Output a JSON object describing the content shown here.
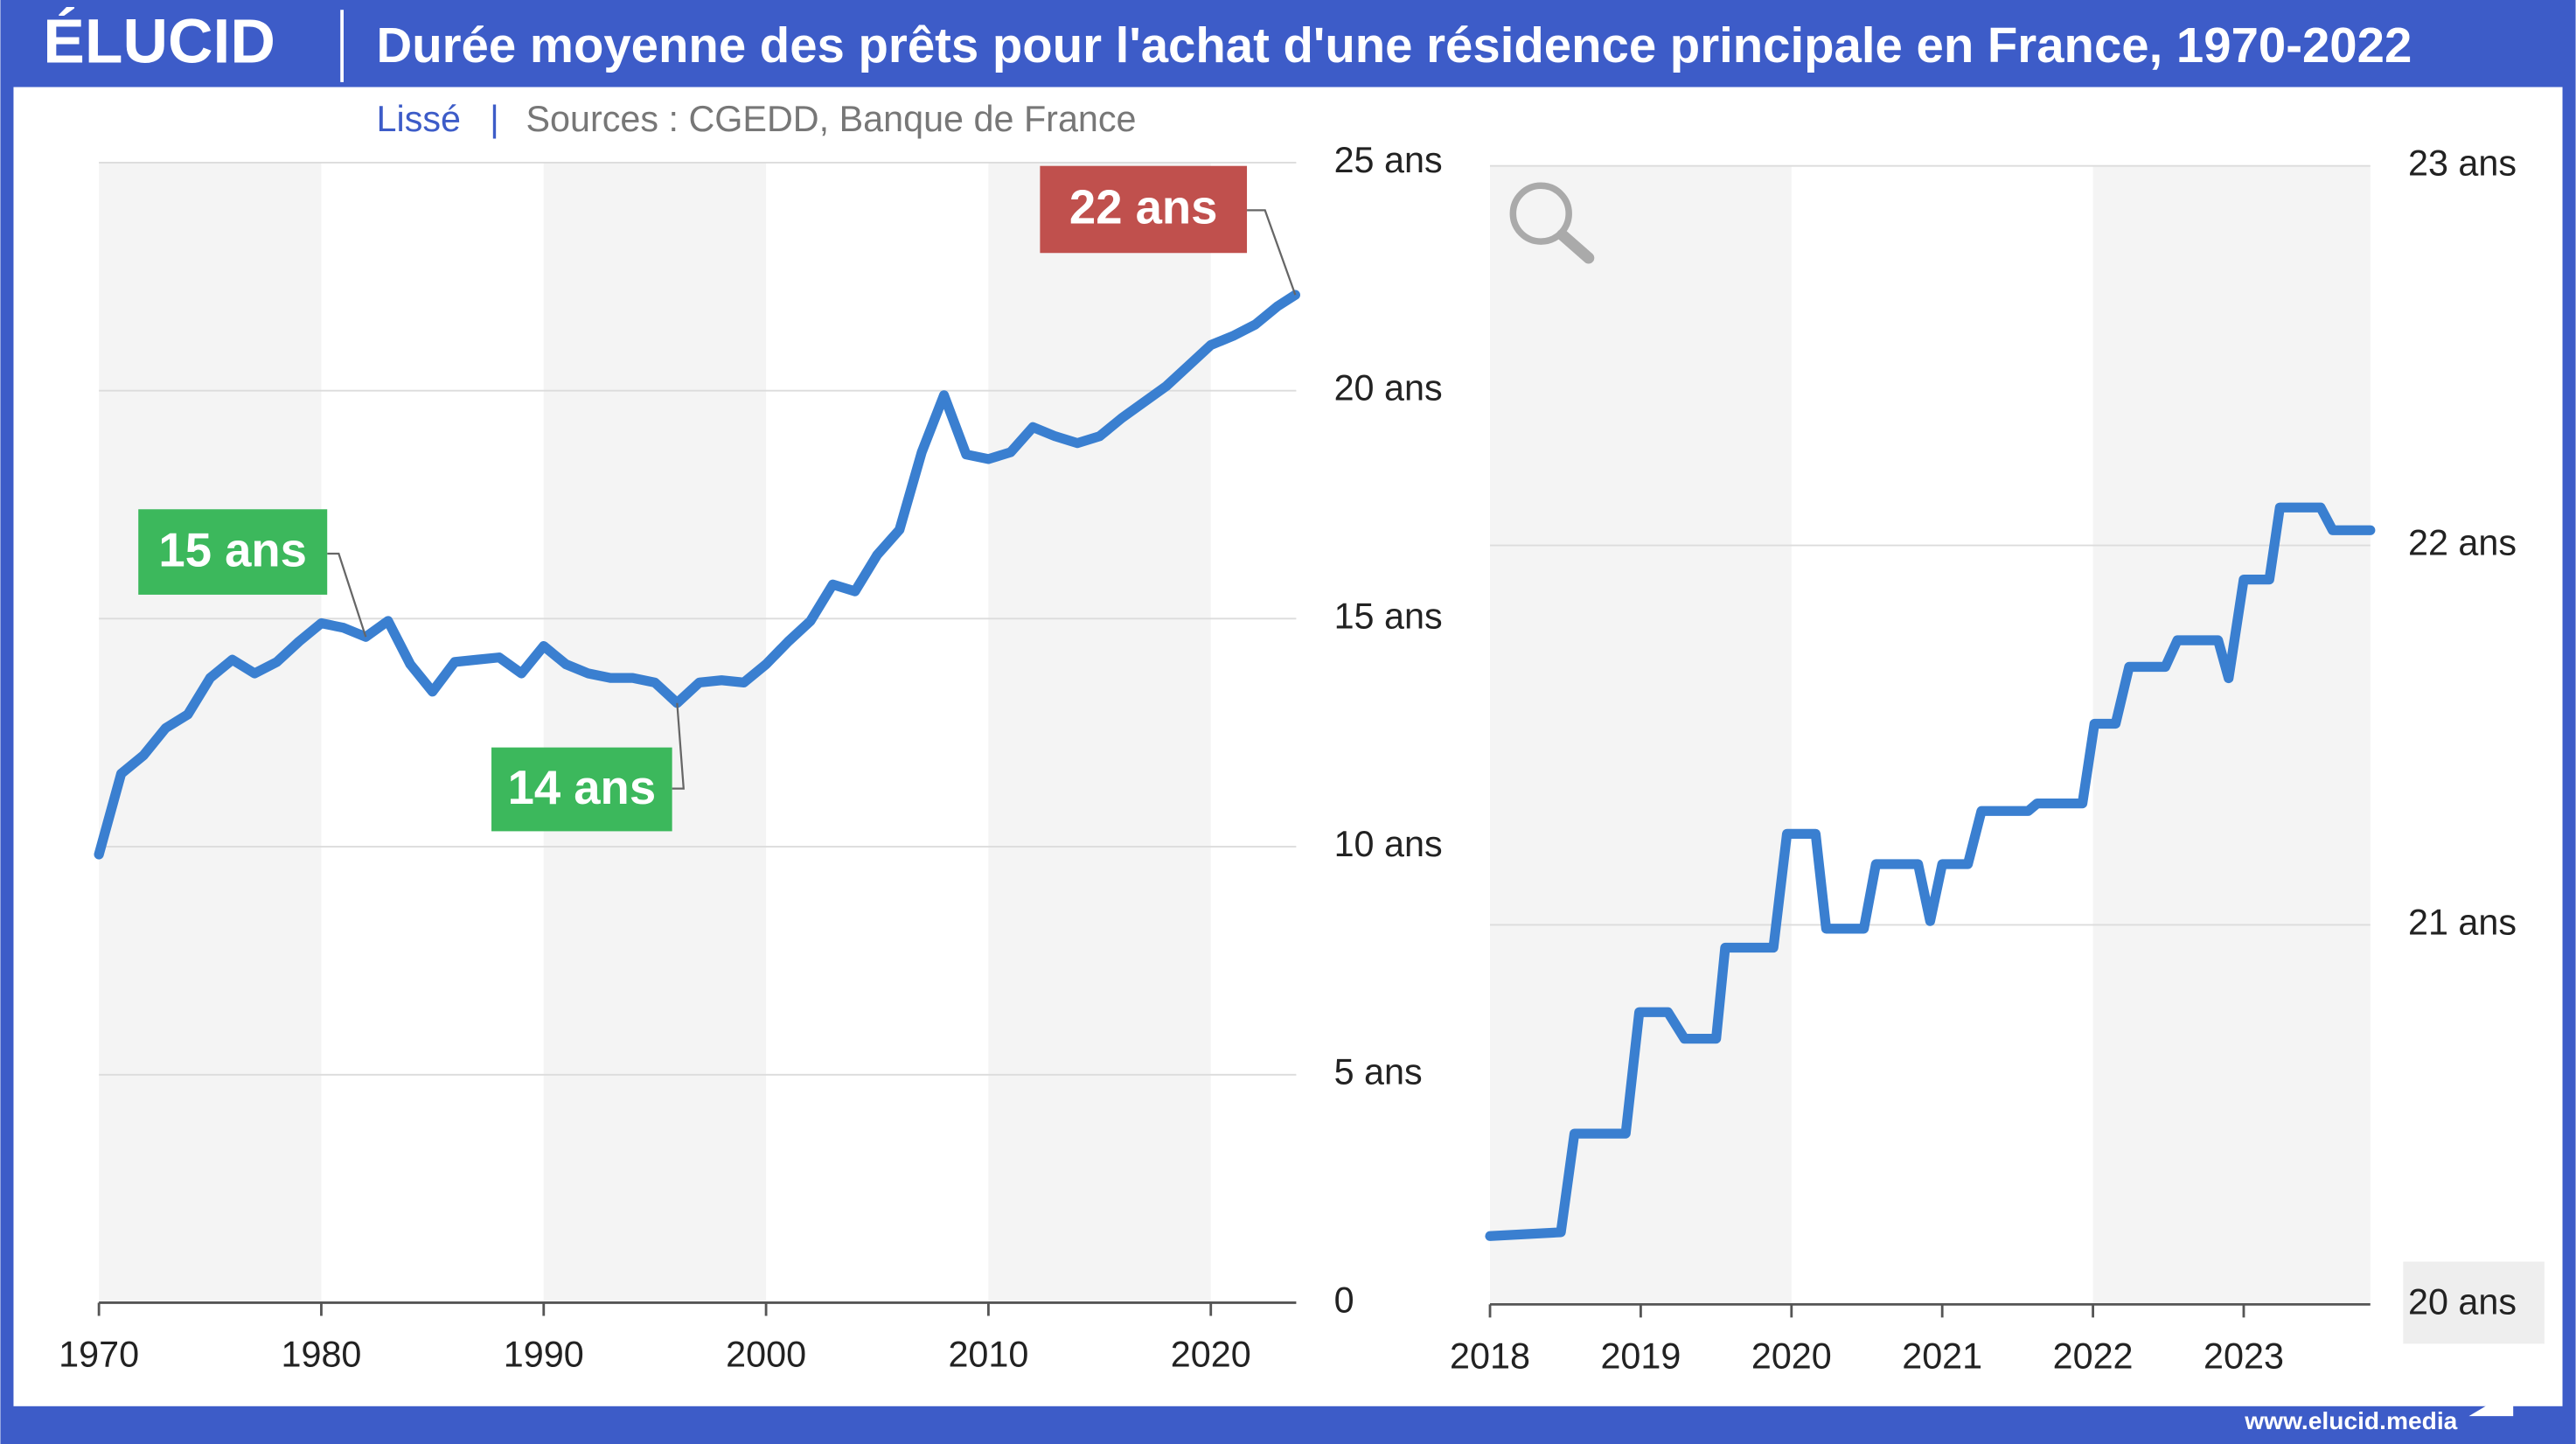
{
  "header": {
    "logo": "ÉLUCID",
    "title": "Durée moyenne des prêts pour l'achat d'une résidence principale en France, 1970-2022",
    "subtitle": "Lissé",
    "sources": "Sources : CGEDD, Banque de France"
  },
  "footer": "www.elucid.media",
  "chart_data": [
    {
      "type": "line",
      "color": "#3a7fd0",
      "grid": true,
      "x": [
        1970,
        1971,
        1972,
        1973,
        1974,
        1975,
        1976,
        1977,
        1978,
        1979,
        1980,
        1981,
        1982,
        1983,
        1984,
        1985,
        1986,
        1987,
        1988,
        1989,
        1990,
        1991,
        1992,
        1993,
        1994,
        1995,
        1996,
        1997,
        1998,
        1999,
        2000,
        2001,
        2002,
        2003,
        2004,
        2005,
        2006,
        2007,
        2008,
        2009,
        2010,
        2011,
        2012,
        2013,
        2014,
        2015,
        2016,
        2017,
        2018,
        2019,
        2020,
        2021,
        2022,
        2023,
        2023.8
      ],
      "values": [
        9.83,
        11.6,
        12.0,
        12.6,
        12.9,
        13.7,
        14.1,
        13.8,
        14.05,
        14.5,
        14.9,
        14.8,
        14.6,
        14.95,
        14.0,
        13.4,
        14.05,
        14.1,
        14.15,
        13.8,
        14.4,
        14.0,
        13.8,
        13.7,
        13.7,
        13.6,
        13.15,
        13.6,
        13.65,
        13.6,
        14.0,
        14.5,
        14.95,
        15.75,
        15.6,
        16.4,
        16.95,
        18.65,
        19.9,
        18.6,
        18.5,
        18.65,
        19.2,
        19.0,
        18.85,
        19.0,
        19.4,
        19.75,
        20.1,
        20.55,
        21.0,
        21.2,
        21.45,
        21.85,
        22.1
      ],
      "xlim": [
        1970,
        2023.84
      ],
      "xticks": [
        1970,
        1980,
        1990,
        2000,
        2010,
        2020
      ],
      "ylim": [
        0,
        25
      ],
      "yticks": [
        0,
        {
          "value": 5,
          "label": "5 ans"
        },
        {
          "value": 10,
          "label": "10 ans"
        },
        {
          "value": 15,
          "label": "15 ans"
        },
        {
          "value": 20,
          "label": "20 ans"
        },
        {
          "value": 25,
          "label": "25 ans"
        }
      ],
      "annotations": [
        {
          "label": "15 ans",
          "color": "#3cb85c"
        },
        {
          "label": "14 ans",
          "color": "#3cb85c"
        },
        {
          "label": "22 ans",
          "color": "#c0504d"
        }
      ]
    },
    {
      "type": "line",
      "color": "#3a7fd0",
      "grid": true,
      "x": [
        2018.0,
        2018.47,
        2018.56,
        2018.9,
        2018.99,
        2019.18,
        2019.29,
        2019.5,
        2019.56,
        2019.88,
        2019.97,
        2020.16,
        2020.23,
        2020.48,
        2020.56,
        2020.84,
        2020.92,
        2021.0,
        2021.17,
        2021.26,
        2021.57,
        2021.63,
        2021.93,
        2022.01,
        2022.15,
        2022.24,
        2022.48,
        2022.56,
        2022.83,
        2022.9,
        2023.0,
        2023.17,
        2023.24,
        2023.51,
        2023.59,
        2023.84
      ],
      "values": [
        20.18,
        20.19,
        20.45,
        20.45,
        20.77,
        20.77,
        20.7,
        20.7,
        20.94,
        20.94,
        21.24,
        21.24,
        20.99,
        20.99,
        21.16,
        21.16,
        21.01,
        21.16,
        21.16,
        21.3,
        21.3,
        21.32,
        21.32,
        21.53,
        21.53,
        21.68,
        21.68,
        21.75,
        21.75,
        21.65,
        21.91,
        21.91,
        22.1,
        22.1,
        22.04,
        22.04
      ],
      "xlim": [
        2018,
        2023.84
      ],
      "xticks": [
        2018,
        2019,
        2020,
        2021,
        2022,
        2023
      ],
      "ylim": [
        20,
        23
      ],
      "yticks": [
        {
          "value": 20,
          "label": "20 ans"
        },
        {
          "value": 21,
          "label": "21 ans"
        },
        {
          "value": 22,
          "label": "22 ans"
        },
        {
          "value": 23,
          "label": "23 ans"
        }
      ]
    }
  ]
}
